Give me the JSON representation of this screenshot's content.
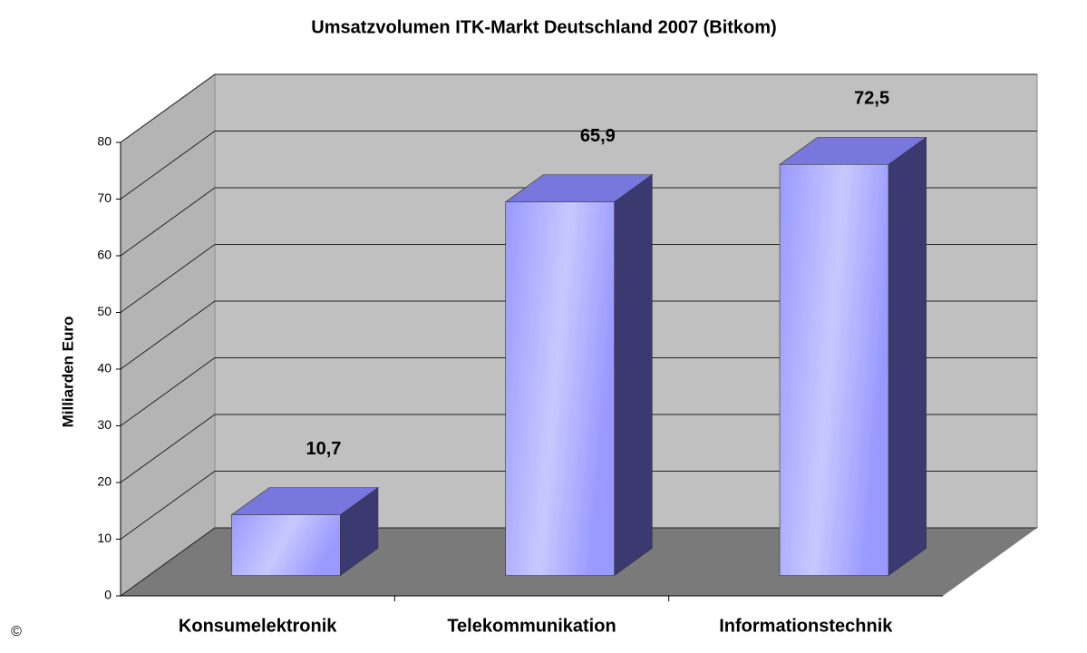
{
  "chart_data": {
    "type": "bar3d",
    "title": "Umsatzvolumen ITK-Markt Deutschland 2007 (Bitkom)",
    "y_label": "Milliarden Euro",
    "categories": [
      "Konsumelektronik",
      "Telekommunikation",
      "Informationstechnik"
    ],
    "values": [
      10.7,
      65.9,
      72.5
    ],
    "value_labels": [
      "10,7",
      "65,9",
      "72,5"
    ],
    "color": "#9999ff",
    "ylim": [
      0,
      80
    ],
    "yticks": [
      0,
      10,
      20,
      30,
      40,
      50,
      60,
      70,
      80
    ],
    "grid": true,
    "copyright": "©"
  }
}
